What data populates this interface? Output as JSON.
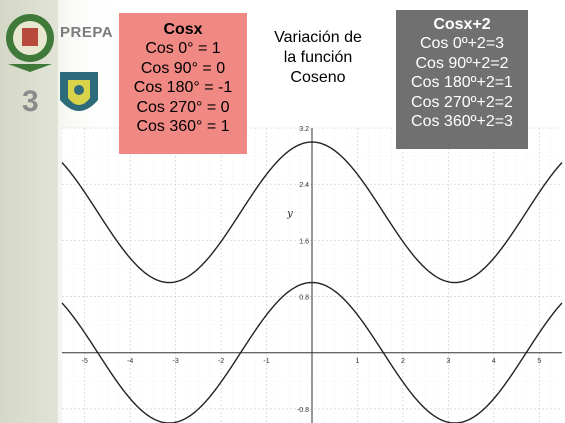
{
  "logo": {
    "brand_text": "PREPA",
    "number": "3"
  },
  "red_box": {
    "title": "Cosx",
    "lines": [
      "Cos 0° = 1",
      "Cos 90° = 0",
      "Cos 180° = -1",
      "Cos 270° = 0",
      "Cos 360° = 1"
    ]
  },
  "center_title": [
    "Variación de",
    "la función",
    "Coseno"
  ],
  "gray_box": {
    "title": "Cosx+2",
    "lines": [
      "Cos 0º+2=3",
      "Cos 90º+2=2",
      "Cos 180º+2=1",
      "Cos 270º+2=2",
      "Cos 360º+2=3"
    ]
  },
  "colors": {
    "red_box_bg": "#f08884",
    "gray_box_bg": "#707070",
    "curve": "#222222",
    "grid": "#c8c8c8"
  },
  "chart_data": {
    "type": "line",
    "title": "",
    "xlabel": "",
    "ylabel": "y",
    "xlim": [
      -5.5,
      5.5
    ],
    "ylim": [
      -1.0,
      3.2
    ],
    "x_ticks": [
      "-5",
      "-4",
      "-3",
      "-2",
      "-1",
      "0",
      "1",
      "2",
      "3",
      "4",
      "5"
    ],
    "y_ticks": [
      "-0.8",
      "0.8",
      "1.6",
      "2.4",
      "3.2"
    ],
    "grid": true,
    "series": [
      {
        "function": "cos(x)",
        "x": [
          -5.5,
          -3.14,
          0,
          3.14,
          5.5
        ],
        "values": [
          0.71,
          -1,
          1,
          -1,
          0.71
        ]
      },
      {
        "function": "cos(x)+2",
        "x": [
          -5.5,
          -3.14,
          0,
          3.14,
          5.5
        ],
        "values": [
          2.71,
          1,
          3,
          1,
          2.71
        ]
      }
    ]
  }
}
